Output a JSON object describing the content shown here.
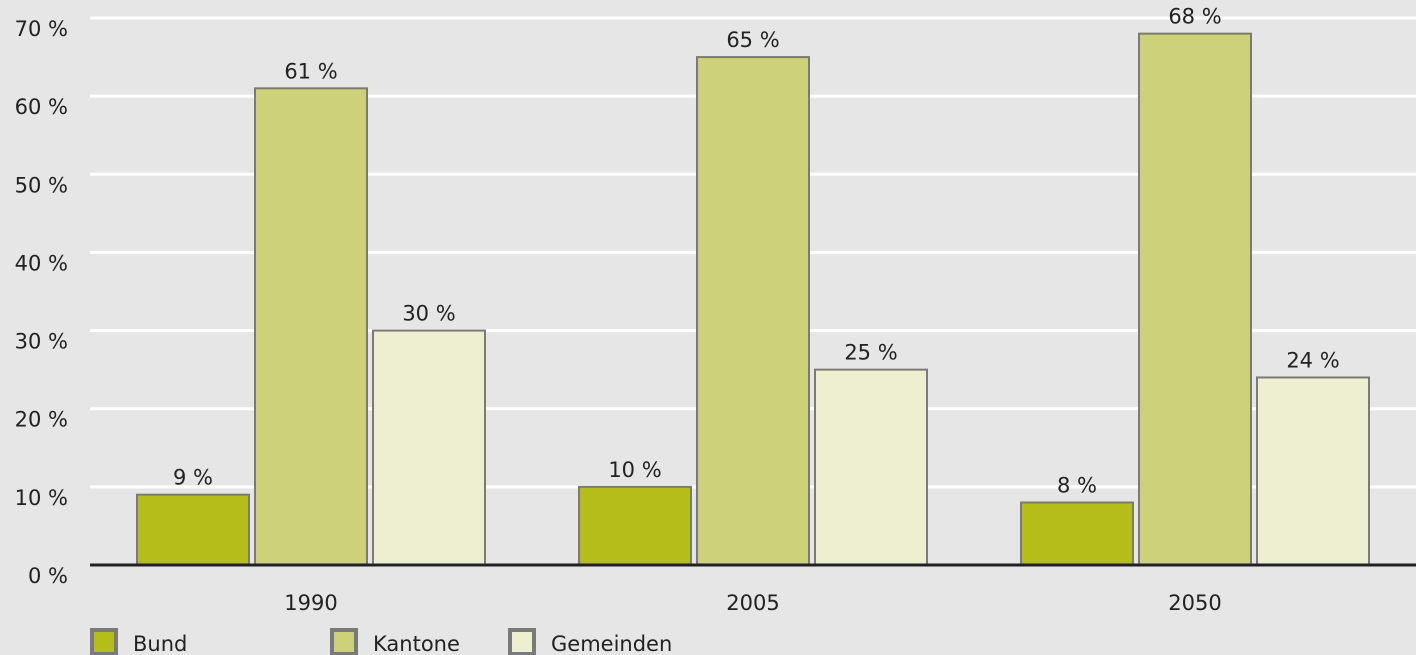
{
  "chart_data": {
    "type": "bar",
    "categories": [
      "1990",
      "2005",
      "2050"
    ],
    "series": [
      {
        "name": "Bund",
        "color": "#b5bd1a",
        "values": [
          9,
          10,
          8
        ],
        "value_labels": [
          "9 %",
          "10 %",
          "8 %"
        ]
      },
      {
        "name": "Kantone",
        "color": "#cdd17a",
        "values": [
          61,
          65,
          68
        ],
        "value_labels": [
          "61 %",
          "65 %",
          "68 %"
        ]
      },
      {
        "name": "Gemeinden",
        "color": "#eeefd0",
        "values": [
          30,
          25,
          24
        ],
        "value_labels": [
          "30 %",
          "25 %",
          "24 %"
        ]
      }
    ],
    "ylim": [
      0,
      70
    ],
    "yticks": [
      {
        "value": 0,
        "label": "0 %"
      },
      {
        "value": 10,
        "label": "10 %"
      },
      {
        "value": 20,
        "label": "20 %"
      },
      {
        "value": 30,
        "label": "30 %"
      },
      {
        "value": 40,
        "label": "40 %"
      },
      {
        "value": 50,
        "label": "50 %"
      },
      {
        "value": 60,
        "label": "60 %"
      },
      {
        "value": 70,
        "label": "70 %"
      }
    ],
    "grid": true,
    "legend": "bottom"
  }
}
